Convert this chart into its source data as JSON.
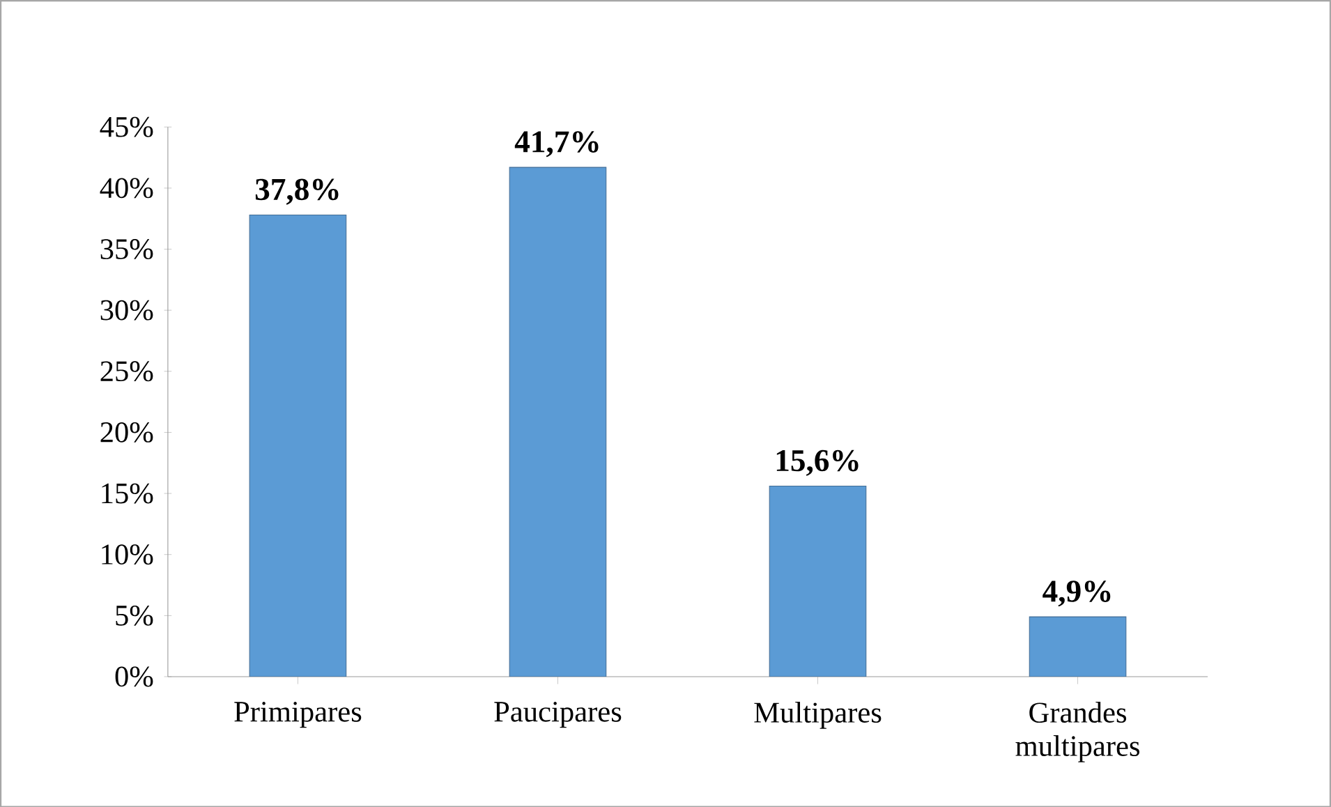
{
  "chart_data": {
    "type": "bar",
    "categories": [
      "Primipares",
      "Paucipares",
      "Multipares",
      "Grandes multipares"
    ],
    "values": [
      37.8,
      41.7,
      15.6,
      4.9
    ],
    "value_labels": [
      "37,8%",
      "41,7%",
      "15,6%",
      "4,9%"
    ],
    "color": "#5b9bd5",
    "ylim": [
      0,
      45
    ],
    "yticks": [
      {
        "value": 0,
        "label": "0%"
      },
      {
        "value": 5,
        "label": "5%"
      },
      {
        "value": 10,
        "label": "10%"
      },
      {
        "value": 15,
        "label": "15%"
      },
      {
        "value": 20,
        "label": "20%"
      },
      {
        "value": 25,
        "label": "25%"
      },
      {
        "value": 30,
        "label": "30%"
      },
      {
        "value": 35,
        "label": "35%"
      },
      {
        "value": 40,
        "label": "40%"
      },
      {
        "value": 45,
        "label": "45%"
      }
    ]
  }
}
